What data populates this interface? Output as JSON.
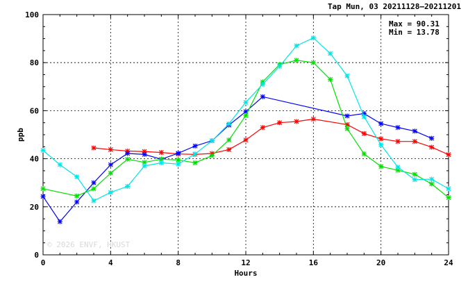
{
  "chart_data": {
    "type": "line",
    "title": "Tap Mun, 03 20211128–20211201",
    "xlabel": "Hours",
    "ylabel": "ppb",
    "xlim": [
      0,
      24
    ],
    "ylim": [
      0,
      100
    ],
    "x_ticks": [
      0,
      4,
      8,
      12,
      16,
      20,
      24
    ],
    "y_ticks": [
      0,
      20,
      40,
      60,
      80,
      100
    ],
    "grid": true,
    "annotations": {
      "max_text": "Max = 90.31",
      "min_text": "Min = 13.78"
    },
    "watermark": "© 2026 ENVF, HKUST",
    "series": [
      {
        "color": "#ff0000",
        "x": [
          3,
          4,
          5,
          6,
          7,
          8,
          9,
          10,
          11,
          12,
          13,
          14,
          15,
          16,
          18,
          19,
          20,
          21,
          22,
          23,
          24
        ],
        "values": [
          44.5,
          43.8,
          43.2,
          43.0,
          42.6,
          42.0,
          41.8,
          42.2,
          43.8,
          47.8,
          53.0,
          55.0,
          55.5,
          56.5,
          54.2,
          50.5,
          48.3,
          47.2,
          47.2,
          44.8,
          41.7
        ]
      },
      {
        "color": "#0000ff",
        "x": [
          0,
          1,
          2,
          3,
          4,
          5,
          6,
          7,
          8,
          9,
          10,
          11,
          12,
          13,
          18,
          19,
          20,
          21,
          22,
          23
        ],
        "values": [
          24.3,
          13.8,
          22.0,
          30.0,
          37.5,
          42.2,
          41.8,
          39.8,
          42.3,
          45.3,
          47.5,
          54.0,
          59.6,
          65.8,
          57.8,
          58.8,
          54.6,
          53.0,
          51.5,
          48.5
        ]
      },
      {
        "color": "#00e000",
        "x": [
          0,
          2,
          3,
          4,
          5,
          6,
          7,
          8,
          9,
          10,
          11,
          12,
          13,
          14,
          15,
          16,
          17,
          18,
          19,
          20,
          21,
          22,
          23,
          24
        ],
        "values": [
          27.5,
          24.5,
          27.5,
          34.0,
          39.8,
          38.5,
          39.8,
          39.5,
          38.3,
          41.3,
          47.8,
          58.0,
          72.0,
          79.2,
          81.0,
          80.0,
          73.0,
          52.5,
          42.0,
          36.8,
          35.2,
          33.5,
          29.5,
          23.8
        ]
      },
      {
        "color": "#00e5e5",
        "x": [
          0,
          1,
          2,
          3,
          4,
          5,
          6,
          7,
          8,
          9,
          10,
          11,
          12,
          13,
          14,
          15,
          16,
          17,
          18,
          19,
          20,
          21,
          22,
          23,
          24
        ],
        "values": [
          43.5,
          37.5,
          32.5,
          22.5,
          26.0,
          28.5,
          37.0,
          38.3,
          37.8,
          42.0,
          47.5,
          54.5,
          63.5,
          71.0,
          78.5,
          87.0,
          90.31,
          83.8,
          74.5,
          57.5,
          45.8,
          36.5,
          31.3,
          31.5,
          27.5
        ]
      }
    ]
  }
}
